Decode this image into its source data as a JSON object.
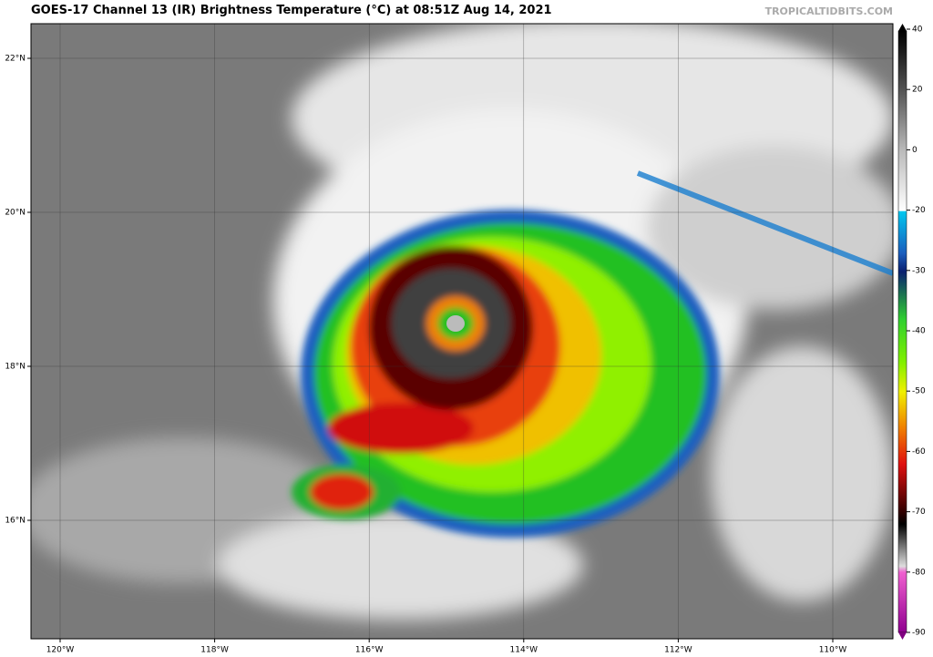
{
  "header": {
    "title": "GOES-17 Channel 13 (IR) Brightness Temperature (°C) at 08:51Z Aug 14, 2021",
    "credit": "TROPICALTIDBITS.COM"
  },
  "map": {
    "lat_labels": [
      "22°N",
      "20°N",
      "18°N",
      "16°N"
    ],
    "lon_labels": [
      "120°W",
      "118°W",
      "116°W",
      "114°W",
      "112°W",
      "110°W"
    ]
  },
  "colorbar": {
    "ticks": [
      40,
      20,
      0,
      -20,
      -30,
      -40,
      -50,
      -60,
      -70,
      -80,
      -90
    ]
  }
}
